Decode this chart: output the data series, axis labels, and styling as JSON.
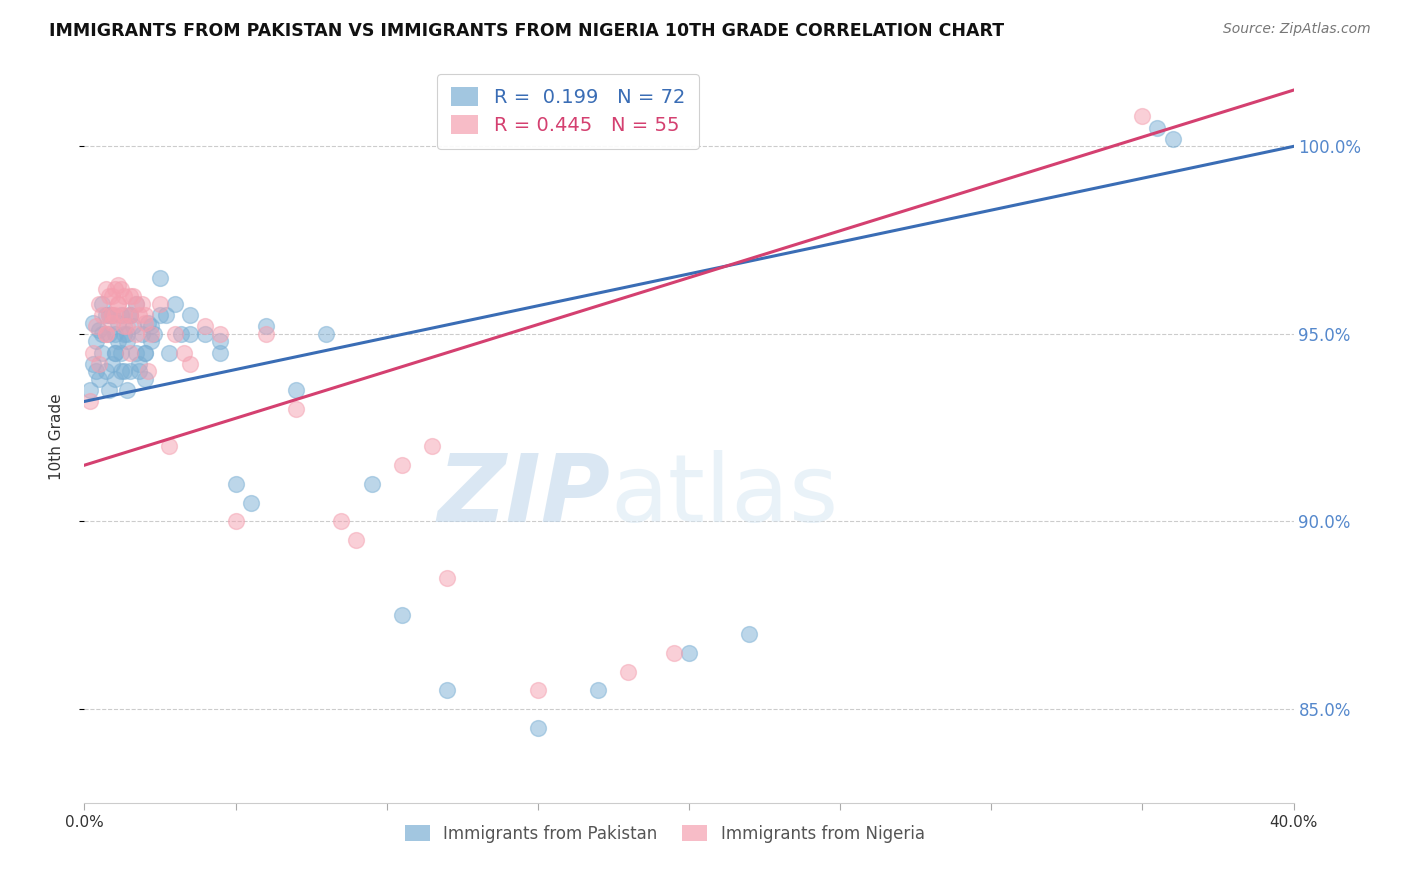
{
  "title": "IMMIGRANTS FROM PAKISTAN VS IMMIGRANTS FROM NIGERIA 10TH GRADE CORRELATION CHART",
  "source": "Source: ZipAtlas.com",
  "ylabel": "10th Grade",
  "xlim": [
    0.0,
    40.0
  ],
  "ylim": [
    82.5,
    102.0
  ],
  "yticks": [
    85.0,
    90.0,
    95.0,
    100.0
  ],
  "xticks": [
    0.0,
    5.0,
    10.0,
    15.0,
    20.0,
    25.0,
    30.0,
    35.0,
    40.0
  ],
  "pakistan_R": 0.199,
  "pakistan_N": 72,
  "nigeria_R": 0.445,
  "nigeria_N": 55,
  "pakistan_color": "#7BAFD4",
  "nigeria_color": "#F4A0B0",
  "pakistan_line_color": "#3A6DB5",
  "nigeria_line_color": "#D44070",
  "watermark_zip": "ZIP",
  "watermark_atlas": "atlas",
  "legend_label_pakistan": "Immigrants from Pakistan",
  "legend_label_nigeria": "Immigrants from Nigeria",
  "pakistan_trend_x0": 0.0,
  "pakistan_trend_y0": 93.2,
  "pakistan_trend_x1": 40.0,
  "pakistan_trend_y1": 100.0,
  "nigeria_trend_x0": 0.0,
  "nigeria_trend_y0": 91.5,
  "nigeria_trend_x1": 40.0,
  "nigeria_trend_y1": 101.5,
  "pakistan_x": [
    0.2,
    0.3,
    0.3,
    0.4,
    0.5,
    0.5,
    0.6,
    0.6,
    0.7,
    0.7,
    0.8,
    0.8,
    0.9,
    0.9,
    1.0,
    1.0,
    1.0,
    1.1,
    1.1,
    1.2,
    1.2,
    1.3,
    1.3,
    1.4,
    1.4,
    1.5,
    1.5,
    1.6,
    1.7,
    1.7,
    1.8,
    1.9,
    2.0,
    2.0,
    2.1,
    2.2,
    2.3,
    2.5,
    2.7,
    3.0,
    3.2,
    3.5,
    4.0,
    4.5,
    5.0,
    5.5,
    6.0,
    7.0,
    8.0,
    9.5,
    10.5,
    12.0,
    15.0,
    17.0,
    20.0,
    22.0,
    35.5,
    36.0,
    0.4,
    0.6,
    0.8,
    1.0,
    1.2,
    1.4,
    1.5,
    1.8,
    2.0,
    2.2,
    2.5,
    2.8,
    3.5,
    4.5
  ],
  "pakistan_y": [
    93.5,
    94.2,
    95.3,
    94.8,
    93.8,
    95.1,
    94.5,
    95.8,
    94.0,
    95.5,
    93.5,
    95.0,
    94.2,
    95.5,
    93.8,
    94.5,
    95.0,
    94.8,
    95.3,
    94.5,
    95.5,
    94.0,
    95.0,
    93.5,
    94.8,
    95.5,
    94.0,
    95.2,
    94.5,
    95.8,
    94.2,
    95.0,
    93.8,
    94.5,
    95.3,
    94.8,
    95.0,
    96.5,
    95.5,
    95.8,
    95.0,
    95.5,
    95.0,
    94.5,
    91.0,
    90.5,
    95.2,
    93.5,
    95.0,
    91.0,
    87.5,
    85.5,
    84.5,
    85.5,
    86.5,
    87.0,
    100.5,
    100.2,
    94.0,
    95.0,
    95.5,
    94.5,
    94.0,
    95.0,
    95.5,
    94.0,
    94.5,
    95.2,
    95.5,
    94.5,
    95.0,
    94.8
  ],
  "nigeria_x": [
    0.2,
    0.3,
    0.4,
    0.5,
    0.6,
    0.7,
    0.7,
    0.8,
    0.8,
    0.9,
    0.9,
    1.0,
    1.0,
    1.1,
    1.1,
    1.2,
    1.3,
    1.3,
    1.4,
    1.5,
    1.5,
    1.6,
    1.7,
    1.8,
    1.9,
    2.0,
    2.1,
    2.2,
    2.5,
    2.8,
    3.0,
    3.3,
    3.5,
    4.0,
    4.5,
    5.0,
    6.0,
    7.0,
    8.5,
    9.0,
    10.5,
    11.5,
    12.0,
    15.0,
    18.0,
    19.5,
    35.0,
    0.5,
    0.7,
    0.9,
    1.1,
    1.3,
    1.5,
    1.7,
    2.0
  ],
  "nigeria_y": [
    93.2,
    94.5,
    95.2,
    95.8,
    95.5,
    95.0,
    96.2,
    95.5,
    96.0,
    95.3,
    96.0,
    95.5,
    96.2,
    95.8,
    96.3,
    96.2,
    95.5,
    96.0,
    95.2,
    96.0,
    95.5,
    96.0,
    95.8,
    95.5,
    95.8,
    95.3,
    94.0,
    95.0,
    95.8,
    92.0,
    95.0,
    94.5,
    94.2,
    95.2,
    95.0,
    90.0,
    95.0,
    93.0,
    90.0,
    89.5,
    91.5,
    92.0,
    88.5,
    85.5,
    86.0,
    86.5,
    100.8,
    94.2,
    95.0,
    95.5,
    95.8,
    95.2,
    94.5,
    95.0,
    95.5
  ]
}
